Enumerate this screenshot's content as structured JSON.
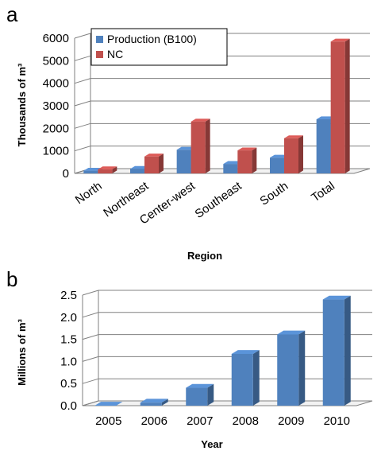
{
  "chart_data": [
    {
      "panel": "a",
      "type": "bar",
      "view": "3d",
      "categories": [
        "North",
        "Northeast",
        "Center-west",
        "Southeast",
        "South",
        "Total"
      ],
      "series": [
        {
          "name": "Production (B100)",
          "color": "#4f81bd",
          "values": [
            120,
            200,
            1050,
            420,
            700,
            2400
          ]
        },
        {
          "name": "NC",
          "color": "#c0504d",
          "values": [
            180,
            750,
            2300,
            1020,
            1560,
            5850
          ]
        }
      ],
      "xlabel": "Region",
      "ylabel": "Thousands of m³",
      "ylim": [
        0,
        6000
      ],
      "yticks": [
        0,
        1000,
        2000,
        3000,
        4000,
        5000,
        6000
      ],
      "grid": true,
      "legend": "top-left"
    },
    {
      "panel": "b",
      "type": "bar",
      "view": "3d",
      "categories": [
        "2005",
        "2006",
        "2007",
        "2008",
        "2009",
        "2010"
      ],
      "series": [
        {
          "color": "#4f81bd",
          "values": [
            0.0007,
            0.069,
            0.404,
            1.17,
            1.61,
            2.4
          ]
        }
      ],
      "xlabel": "Year",
      "ylabel": "Millions of m³",
      "ylim": [
        0,
        2.5
      ],
      "yticks": [
        "0.0",
        "0.5",
        "1.0",
        "1.5",
        "2.0",
        "2.5"
      ],
      "grid": true
    }
  ]
}
